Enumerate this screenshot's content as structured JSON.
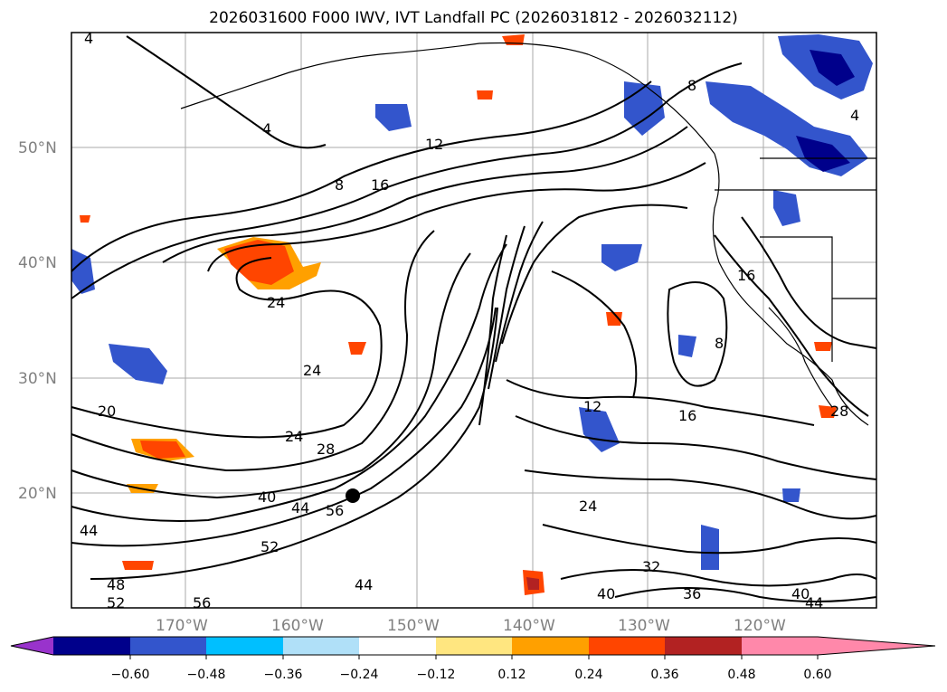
{
  "title": "2026031600 F000 IWV, IVT Landfall PC (2026031812 - 2026032112)",
  "map": {
    "lat_labels": [
      "50°N",
      "40°N",
      "30°N",
      "20°N"
    ],
    "lon_labels": [
      "170°W",
      "160°W",
      "150°W",
      "140°W",
      "130°W",
      "120°W"
    ],
    "contour_labels": [
      "4",
      "4",
      "8",
      "4",
      "12",
      "8",
      "16",
      "24",
      "24",
      "20",
      "24",
      "28",
      "40",
      "44",
      "56",
      "44",
      "52",
      "48",
      "52",
      "56",
      "44",
      "24",
      "32",
      "36",
      "40",
      "40",
      "44",
      "12",
      "16",
      "8",
      "16",
      "28"
    ]
  },
  "colorbar": {
    "ticks": [
      "−0.60",
      "−0.48",
      "−0.36",
      "−0.24",
      "−0.12",
      "0.12",
      "0.24",
      "0.36",
      "0.48",
      "0.60"
    ],
    "colors": [
      "#9933cc",
      "#00008b",
      "#3355cc",
      "#00bfff",
      "#b0e0f8",
      "#ffffff",
      "#ffe680",
      "#ffa000",
      "#ff4500",
      "#b22222",
      "#ff88aa"
    ]
  }
}
